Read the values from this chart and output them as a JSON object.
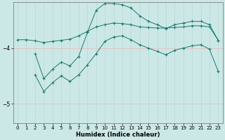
{
  "xlabel": "Humidex (Indice chaleur)",
  "bg_color": "#cce8e6",
  "line_color": "#1a7a6e",
  "grid_color_v": "#b8d8d6",
  "grid_color_h": "#e8b8b8",
  "xlim": [
    -0.5,
    23.5
  ],
  "ylim": [
    -5.35,
    -3.18
  ],
  "yticks": [
    -5,
    -4
  ],
  "xticks": [
    0,
    1,
    2,
    3,
    4,
    5,
    6,
    7,
    8,
    9,
    10,
    11,
    12,
    13,
    14,
    15,
    16,
    17,
    18,
    19,
    20,
    21,
    22,
    23
  ],
  "curve_flat_x": [
    0,
    1,
    2,
    3,
    4,
    5,
    6,
    7,
    8,
    9,
    10,
    11,
    12,
    13,
    14,
    15,
    16,
    17,
    18,
    19,
    20,
    21,
    22,
    23
  ],
  "curve_flat_y": [
    -3.85,
    -3.85,
    -3.87,
    -3.9,
    -3.88,
    -3.86,
    -3.84,
    -3.78,
    -3.7,
    -3.62,
    -3.58,
    -3.55,
    -3.56,
    -3.58,
    -3.62,
    -3.63,
    -3.64,
    -3.64,
    -3.63,
    -3.62,
    -3.6,
    -3.6,
    -3.62,
    -3.86
  ],
  "curve_peak_x": [
    2,
    3,
    4,
    5,
    6,
    7,
    8,
    9,
    10,
    11,
    12,
    13,
    14,
    15,
    16,
    17,
    18,
    19,
    20,
    21,
    22,
    23
  ],
  "curve_peak_y": [
    -4.1,
    -4.55,
    -4.38,
    -4.25,
    -4.32,
    -4.15,
    -3.72,
    -3.32,
    -3.2,
    -3.2,
    -3.22,
    -3.28,
    -3.42,
    -3.52,
    -3.58,
    -3.65,
    -3.58,
    -3.55,
    -3.52,
    -3.52,
    -3.58,
    -3.86
  ],
  "curve_low_x": [
    2,
    3,
    4,
    5,
    6,
    7,
    8,
    9,
    10,
    11,
    12,
    13,
    14,
    15,
    16,
    17,
    18,
    19,
    20,
    21,
    22,
    23
  ],
  "curve_low_y": [
    -4.48,
    -4.78,
    -4.62,
    -4.5,
    -4.6,
    -4.48,
    -4.3,
    -4.1,
    -3.88,
    -3.8,
    -3.78,
    -3.85,
    -3.94,
    -4.0,
    -4.06,
    -4.12,
    -4.04,
    -4.0,
    -3.96,
    -3.94,
    -4.02,
    -4.42
  ]
}
